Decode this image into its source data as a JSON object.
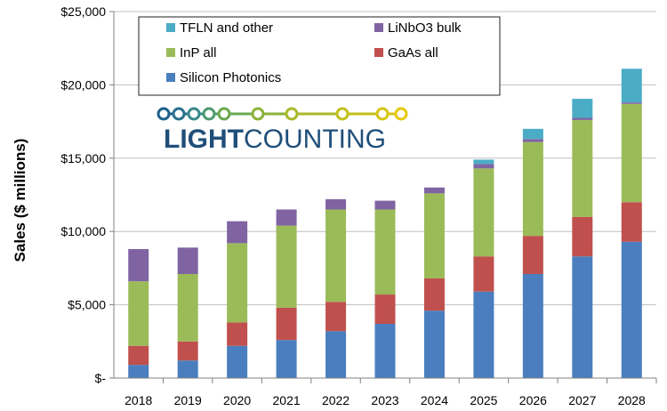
{
  "chart_data": {
    "type": "bar",
    "stacked": true,
    "ylabel": "Sales ($ millions)",
    "ylim": [
      0,
      25000
    ],
    "yticks": [
      {
        "value": 0,
        "label": "$-"
      },
      {
        "value": 5000,
        "label": "$5,000"
      },
      {
        "value": 10000,
        "label": "$10,000"
      },
      {
        "value": 15000,
        "label": "$15,000"
      },
      {
        "value": 20000,
        "label": "$20,000"
      },
      {
        "value": 25000,
        "label": "$25,000"
      }
    ],
    "grid": true,
    "legend_position": "top",
    "categories": [
      "2018",
      "2019",
      "2020",
      "2021",
      "2022",
      "2023",
      "2024",
      "2025",
      "2026",
      "2027",
      "2028"
    ],
    "series": [
      {
        "name": "Silicon Photonics",
        "color": "#4a7ebf",
        "values": [
          900,
          1200,
          2200,
          2600,
          3200,
          3700,
          4600,
          5900,
          7100,
          8300,
          9300
        ]
      },
      {
        "name": "GaAs all",
        "color": "#c0504d",
        "values": [
          1300,
          1300,
          1600,
          2200,
          2000,
          2000,
          2200,
          2400,
          2600,
          2700,
          2700
        ]
      },
      {
        "name": "InP all",
        "color": "#9bbb59",
        "values": [
          4400,
          4600,
          5400,
          5600,
          6300,
          5800,
          5800,
          6000,
          6400,
          6600,
          6700
        ]
      },
      {
        "name": "LiNbO3 bulk",
        "color": "#8064a2",
        "values": [
          2200,
          1800,
          1500,
          1100,
          700,
          600,
          400,
          300,
          200,
          150,
          100
        ]
      },
      {
        "name": "TFLN and other",
        "color": "#4bacc6",
        "values": [
          0,
          0,
          0,
          0,
          0,
          0,
          0,
          300,
          700,
          1300,
          2300
        ]
      }
    ]
  },
  "legend": {
    "rows": [
      [
        {
          "series": 4
        },
        {
          "series": 3
        }
      ],
      [
        {
          "series": 2
        },
        {
          "series": 1
        }
      ],
      [
        {
          "series": 0
        }
      ]
    ]
  },
  "logo": {
    "text_bold": "LIGHT",
    "text_regular": "COUNTING",
    "circle_colors": [
      "#1f5f8b",
      "#2a6f8f",
      "#3a8a8a",
      "#4e9a6e",
      "#6aa84f",
      "#8ab33a",
      "#a8b82a",
      "#c2bf1c",
      "#d6c414",
      "#e8c80e"
    ]
  }
}
